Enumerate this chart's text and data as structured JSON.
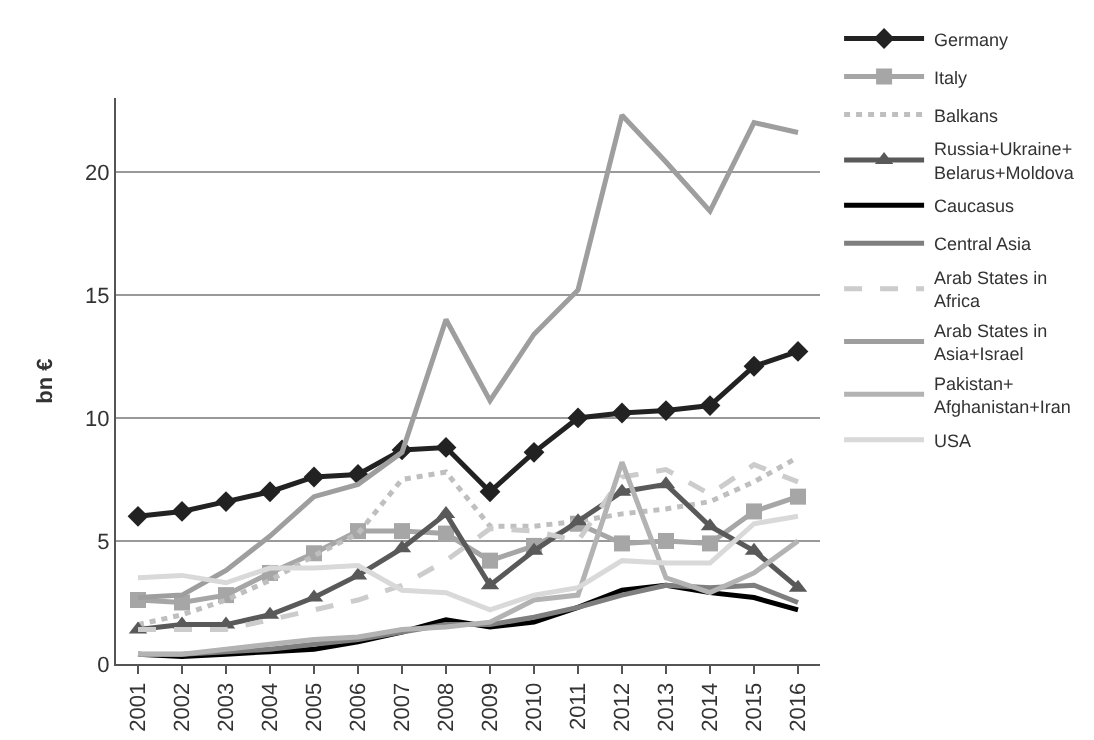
{
  "chart_data": {
    "type": "line",
    "ylabel": "bn €",
    "categories": [
      "2001",
      "2002",
      "2003",
      "2004",
      "2005",
      "2006",
      "2007",
      "2008",
      "2009",
      "2010",
      "2011",
      "2012",
      "2013",
      "2014",
      "2015",
      "2016"
    ],
    "ylim": [
      0,
      23
    ],
    "yticks": [
      0,
      5,
      10,
      15,
      20
    ],
    "grid": "y",
    "legend": "right",
    "series": [
      {
        "name": "Germany",
        "color": "#222222",
        "marker": "diamond",
        "line_style": "solid",
        "values": [
          6.0,
          6.2,
          6.6,
          7.0,
          7.6,
          7.7,
          8.7,
          8.8,
          7.0,
          8.6,
          10.0,
          10.2,
          10.3,
          10.5,
          12.1,
          12.7
        ]
      },
      {
        "name": "Italy",
        "color": "#a6a6a6",
        "marker": "square",
        "line_style": "solid",
        "values": [
          2.6,
          2.5,
          2.8,
          3.7,
          4.5,
          5.4,
          5.4,
          5.3,
          4.2,
          4.8,
          5.7,
          4.9,
          5.0,
          4.9,
          6.2,
          6.8
        ]
      },
      {
        "name": "Balkans",
        "color": "#bfbfbf",
        "marker": "none",
        "line_style": "dotted",
        "values": [
          1.6,
          2.0,
          2.6,
          3.4,
          4.4,
          5.3,
          7.5,
          7.8,
          5.6,
          5.6,
          5.8,
          6.1,
          6.3,
          6.6,
          7.4,
          8.4
        ]
      },
      {
        "name": "Russia+Ukraine+Belarus+Moldova",
        "color": "#595959",
        "marker": "triangle",
        "line_style": "solid",
        "values": [
          1.4,
          1.6,
          1.6,
          2.0,
          2.7,
          3.6,
          4.7,
          6.1,
          3.2,
          4.6,
          5.8,
          7.0,
          7.3,
          5.6,
          4.6,
          3.1
        ]
      },
      {
        "name": "Caucasus",
        "color": "#000000",
        "marker": "none",
        "line_style": "solid",
        "values": [
          0.4,
          0.3,
          0.4,
          0.5,
          0.6,
          0.9,
          1.3,
          1.8,
          1.5,
          1.7,
          2.3,
          3.0,
          3.2,
          2.9,
          2.7,
          2.2
        ]
      },
      {
        "name": "Central Asia",
        "color": "#7f7f7f",
        "marker": "none",
        "line_style": "solid",
        "values": [
          0.4,
          0.4,
          0.5,
          0.6,
          0.8,
          1.0,
          1.3,
          1.6,
          1.6,
          1.9,
          2.3,
          2.8,
          3.2,
          3.1,
          3.2,
          2.5
        ]
      },
      {
        "name": "Arab States in Africa",
        "color": "#cccccc",
        "marker": "none",
        "line_style": "dashed",
        "values": [
          1.4,
          1.4,
          1.4,
          1.8,
          2.2,
          2.6,
          3.2,
          4.2,
          5.5,
          5.4,
          5.0,
          7.6,
          7.9,
          6.9,
          8.1,
          7.4
        ]
      },
      {
        "name": "Arab States in Asia+Israel",
        "color": "#9e9e9e",
        "marker": "none",
        "line_style": "solid",
        "values": [
          2.7,
          2.8,
          3.8,
          5.2,
          6.8,
          7.3,
          8.6,
          14.0,
          10.7,
          13.4,
          15.2,
          22.3,
          20.4,
          18.4,
          22.0,
          21.6
        ]
      },
      {
        "name": "Pakistan+Afghanistan+Iran",
        "color": "#b3b3b3",
        "marker": "none",
        "line_style": "solid",
        "values": [
          0.4,
          0.4,
          0.6,
          0.8,
          1.0,
          1.1,
          1.4,
          1.5,
          1.7,
          2.6,
          2.8,
          8.2,
          3.5,
          2.9,
          3.7,
          5.0
        ]
      },
      {
        "name": "USA",
        "color": "#d9d9d9",
        "marker": "none",
        "line_style": "solid",
        "values": [
          3.5,
          3.6,
          3.3,
          3.9,
          3.9,
          4.0,
          3.0,
          2.9,
          2.2,
          2.8,
          3.1,
          4.2,
          4.1,
          4.1,
          5.7,
          6.0
        ]
      }
    ]
  }
}
